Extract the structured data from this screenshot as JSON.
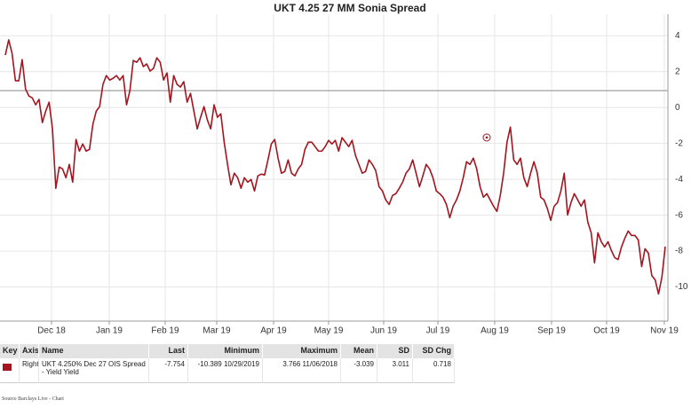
{
  "chart_data": {
    "type": "line",
    "title": "UKT 4.25 27 MM Sonia Spread",
    "color": "#a3151f",
    "values": [
      2.92,
      3.77,
      3.02,
      1.49,
      1.49,
      2.67,
      1.04,
      0.64,
      0.54,
      0.15,
      0.45,
      -0.84,
      -0.2,
      0.3,
      -1.19,
      -4.5,
      -3.32,
      -3.42,
      -3.91,
      -3.17,
      -4.16,
      -1.78,
      -2.43,
      -2.03,
      -2.43,
      -2.33,
      -0.94,
      -0.2,
      0.05,
      1.29,
      1.78,
      1.53,
      1.63,
      1.78,
      1.53,
      1.78,
      0.15,
      0.94,
      2.62,
      2.52,
      2.77,
      2.28,
      2.43,
      2.03,
      2.18,
      2.77,
      2.52,
      1.53,
      1.93,
      0.3,
      1.78,
      1.29,
      1.14,
      1.44,
      0.3,
      0.79,
      -0.2,
      -1.19,
      -0.54,
      0.05,
      -0.69,
      -1.19,
      0.15,
      -0.54,
      -0.35,
      -1.93,
      -3.17,
      -4.31,
      -3.66,
      -3.91,
      -4.5,
      -3.91,
      -4.16,
      -4.01,
      -4.65,
      -3.81,
      -3.71,
      -3.76,
      -2.92,
      -2.03,
      -1.78,
      -2.82,
      -3.66,
      -3.56,
      -2.92,
      -3.66,
      -3.81,
      -3.42,
      -3.17,
      -2.33,
      -1.93,
      -1.93,
      -2.18,
      -2.43,
      -2.43,
      -2.18,
      -1.83,
      -2.03,
      -1.83,
      -2.43,
      -1.68,
      -1.93,
      -2.18,
      -1.83,
      -2.67,
      -3.17,
      -3.66,
      -3.56,
      -2.92,
      -3.17,
      -3.51,
      -4.41,
      -4.65,
      -5.15,
      -5.4,
      -4.9,
      -4.8,
      -4.5,
      -4.16,
      -3.66,
      -3.42,
      -2.92,
      -3.66,
      -4.41,
      -3.81,
      -3.17,
      -3.42,
      -3.91,
      -4.65,
      -4.8,
      -5.0,
      -5.4,
      -6.14,
      -5.5,
      -5.15,
      -4.65,
      -3.91,
      -3.02,
      -3.17,
      -2.82,
      -3.42,
      -4.41,
      -5.0,
      -4.8,
      -5.15,
      -5.5,
      -5.79,
      -4.9,
      -3.66,
      -1.93,
      -1.09,
      -2.92,
      -3.17,
      -2.82,
      -3.91,
      -4.41,
      -3.66,
      -3.02,
      -3.66,
      -5.0,
      -5.15,
      -5.64,
      -6.29,
      -5.5,
      -5.3,
      -4.65,
      -3.66,
      -5.99,
      -5.3,
      -4.8,
      -5.15,
      -5.5,
      -5.15,
      -6.39,
      -6.98,
      -8.66,
      -6.98,
      -7.48,
      -7.77,
      -7.48,
      -7.97,
      -8.37,
      -8.47,
      -7.77,
      -7.28,
      -6.88,
      -7.13,
      -7.13,
      -7.38,
      -8.86,
      -7.87,
      -8.12,
      -9.36,
      -9.6,
      -10.39,
      -9.46,
      -7.75
    ],
    "xlim": [
      0,
      196
    ],
    "xticks": [
      {
        "value": 13.72,
        "label": "Dec 18"
      },
      {
        "value": 30.86,
        "label": "Jan 19"
      },
      {
        "value": 47.48,
        "label": "Feb 19"
      },
      {
        "value": 62.78,
        "label": "Mar 19"
      },
      {
        "value": 79.66,
        "label": "Apr 19"
      },
      {
        "value": 96.02,
        "label": "May 19"
      },
      {
        "value": 112.37,
        "label": "Jun 19"
      },
      {
        "value": 128.46,
        "label": "Jul 19"
      },
      {
        "value": 145.34,
        "label": "Aug 19"
      },
      {
        "value": 162.22,
        "label": "Sep 19"
      },
      {
        "value": 178.58,
        "label": "Oct 19"
      },
      {
        "value": 195.72,
        "label": "Nov 19"
      }
    ],
    "ylim": [
      -11.9,
      5.2
    ],
    "yticks": [
      4,
      2,
      0,
      -2,
      -4,
      -6,
      -8,
      -10
    ],
    "grid": true,
    "reference_line": 0.94
  },
  "table": {
    "header": [
      "Key",
      "Axis",
      "Name",
      "Last",
      "Minimum",
      "Maximum",
      "Mean",
      "SD",
      "SD Chg"
    ],
    "rows": [
      [
        "Right",
        "UKT 4.250% Dec 27 OIS Spread - Yield Yield",
        "-7.754",
        "-10.389 10/29/2019",
        "3.766 11/06/2018",
        "-3.039",
        "3.011",
        "0.718"
      ]
    ]
  },
  "source": "Source Barclays Live - Chart"
}
